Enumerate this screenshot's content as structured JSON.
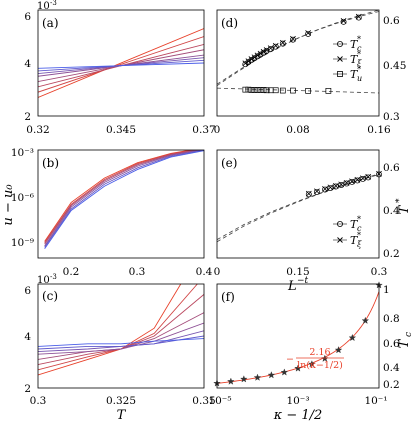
{
  "chart_data": [
    {
      "id": "a",
      "type": "line",
      "panel_label": "(a)",
      "xlim": [
        0.32,
        0.37
      ],
      "ylim": [
        0.002,
        0.006
      ],
      "xticks": [
        "0.32",
        "0.345",
        "0.37"
      ],
      "yticks": [
        "2",
        "4",
        "6"
      ],
      "y_exponent": "10",
      "y_exponent_power": "-3",
      "crossing": [
        0.358,
        0.0041
      ],
      "line_color_start": "#e8412a",
      "line_color_end": "#4a5ee8",
      "series": [
        {
          "values": [
            [
              0.32,
              0.0027
            ],
            [
              0.37,
              0.0053
            ]
          ]
        },
        {
          "values": [
            [
              0.32,
              0.0029
            ],
            [
              0.37,
              0.005
            ]
          ]
        },
        {
          "values": [
            [
              0.32,
              0.0031
            ],
            [
              0.37,
              0.0047
            ]
          ]
        },
        {
          "values": [
            [
              0.32,
              0.0033
            ],
            [
              0.37,
              0.0045
            ]
          ]
        },
        {
          "values": [
            [
              0.32,
              0.0035
            ],
            [
              0.37,
              0.0043
            ]
          ]
        },
        {
          "values": [
            [
              0.32,
              0.0036
            ],
            [
              0.37,
              0.0042
            ]
          ]
        },
        {
          "values": [
            [
              0.32,
              0.0037
            ],
            [
              0.37,
              0.0041
            ]
          ]
        },
        {
          "values": [
            [
              0.32,
              0.0038
            ],
            [
              0.37,
              0.004
            ]
          ]
        }
      ]
    },
    {
      "id": "b",
      "type": "line",
      "panel_label": "(b)",
      "ylabel": "u − u₀",
      "yscale": "log",
      "xlim": [
        0.15,
        0.4
      ],
      "ylim": [
        1e-10,
        0.001
      ],
      "xticks": [
        "0.2",
        "0.3",
        "0.4"
      ],
      "yticks": [
        "10⁻⁹",
        "10⁻⁶",
        "10⁻³"
      ],
      "line_color_start": "#e8412a",
      "line_color_end": "#4a5ee8",
      "series": [
        {
          "values": [
            [
              0.16,
              1.2e-09
            ],
            [
              0.2,
              4e-07
            ],
            [
              0.25,
              1.5e-05
            ],
            [
              0.3,
              0.00015
            ],
            [
              0.35,
              0.0006
            ],
            [
              0.38,
              0.001
            ]
          ]
        },
        {
          "values": [
            [
              0.16,
              1e-09
            ],
            [
              0.2,
              3e-07
            ],
            [
              0.25,
              1.2e-05
            ],
            [
              0.3,
              0.00013
            ],
            [
              0.35,
              0.00055
            ],
            [
              0.385,
              0.001
            ]
          ]
        },
        {
          "values": [
            [
              0.16,
              8e-10
            ],
            [
              0.2,
              2.5e-07
            ],
            [
              0.25,
              1e-05
            ],
            [
              0.3,
              0.00011
            ],
            [
              0.35,
              0.0005
            ],
            [
              0.39,
              0.001
            ]
          ]
        },
        {
          "values": [
            [
              0.16,
              6e-10
            ],
            [
              0.2,
              2e-07
            ],
            [
              0.25,
              8e-06
            ],
            [
              0.3,
              9e-05
            ],
            [
              0.35,
              0.00045
            ],
            [
              0.395,
              0.001
            ]
          ]
        },
        {
          "values": [
            [
              0.16,
              5e-10
            ],
            [
              0.2,
              1.5e-07
            ],
            [
              0.25,
              6e-06
            ],
            [
              0.3,
              7e-05
            ],
            [
              0.35,
              0.0004
            ],
            [
              0.4,
              0.001
            ]
          ]
        },
        {
          "values": [
            [
              0.16,
              4e-10
            ],
            [
              0.2,
              1.2e-07
            ],
            [
              0.25,
              4.5e-06
            ],
            [
              0.3,
              5.5e-05
            ],
            [
              0.35,
              0.00035
            ],
            [
              0.4,
              0.0009
            ]
          ]
        }
      ]
    },
    {
      "id": "c",
      "type": "line",
      "panel_label": "(c)",
      "xlabel": "T",
      "xlim": [
        0.3,
        0.35
      ],
      "ylim": [
        0.002,
        0.006
      ],
      "xticks": [
        "0.3",
        "0.325",
        "0.35"
      ],
      "yticks": [
        "2",
        "4",
        "6"
      ],
      "y_exponent": "10",
      "y_exponent_power": "-3",
      "line_color_start": "#e8412a",
      "line_color_end": "#4a5ee8",
      "series": [
        {
          "values": [
            [
              0.3,
              0.0025
            ],
            [
              0.315,
              0.0031
            ],
            [
              0.325,
              0.0035
            ],
            [
              0.335,
              0.0043
            ],
            [
              0.343,
              0.006
            ]
          ]
        },
        {
          "values": [
            [
              0.3,
              0.0027
            ],
            [
              0.315,
              0.0032
            ],
            [
              0.325,
              0.0035
            ],
            [
              0.335,
              0.0041
            ],
            [
              0.348,
              0.006
            ]
          ]
        },
        {
          "values": [
            [
              0.3,
              0.0029
            ],
            [
              0.315,
              0.0033
            ],
            [
              0.325,
              0.0035
            ],
            [
              0.335,
              0.004
            ],
            [
              0.35,
              0.0056
            ]
          ]
        },
        {
          "values": [
            [
              0.3,
              0.0031
            ],
            [
              0.315,
              0.0034
            ],
            [
              0.325,
              0.0035
            ],
            [
              0.335,
              0.0039
            ],
            [
              0.35,
              0.0049
            ]
          ]
        },
        {
          "values": [
            [
              0.3,
              0.0033
            ],
            [
              0.315,
              0.0034
            ],
            [
              0.325,
              0.0035
            ],
            [
              0.335,
              0.0038
            ],
            [
              0.35,
              0.0045
            ]
          ]
        },
        {
          "values": [
            [
              0.3,
              0.0034
            ],
            [
              0.315,
              0.0035
            ],
            [
              0.325,
              0.0036
            ],
            [
              0.335,
              0.0037
            ],
            [
              0.35,
              0.0042
            ]
          ]
        },
        {
          "values": [
            [
              0.3,
              0.0035
            ],
            [
              0.315,
              0.0036
            ],
            [
              0.325,
              0.0036
            ],
            [
              0.335,
              0.0037
            ],
            [
              0.35,
              0.004
            ]
          ]
        },
        {
          "values": [
            [
              0.3,
              0.0036
            ],
            [
              0.315,
              0.0037
            ],
            [
              0.325,
              0.0037
            ],
            [
              0.335,
              0.0038
            ],
            [
              0.35,
              0.0039
            ]
          ]
        }
      ]
    },
    {
      "id": "d",
      "type": "scatter",
      "panel_label": "(d)",
      "xlim": [
        0,
        0.16
      ],
      "ylim": [
        0.3,
        0.65
      ],
      "xticks": [
        "0",
        "0.08",
        "0.16"
      ],
      "yticks": [
        "0.3",
        "0.45",
        "0.6"
      ],
      "legend": [
        "T_c^*",
        "T_ξ^*",
        "T_u^*"
      ],
      "series": [
        {
          "name": "T_c^*",
          "marker": "circle",
          "values": [
            [
              0.028,
              0.471
            ],
            [
              0.031,
              0.478
            ],
            [
              0.034,
              0.485
            ],
            [
              0.037,
              0.491
            ],
            [
              0.04,
              0.497
            ],
            [
              0.043,
              0.503
            ],
            [
              0.046,
              0.509
            ],
            [
              0.049,
              0.515
            ],
            [
              0.053,
              0.521
            ],
            [
              0.058,
              0.529
            ],
            [
              0.065,
              0.539
            ],
            [
              0.075,
              0.552
            ],
            [
              0.09,
              0.571
            ],
            [
              0.125,
              0.611
            ],
            [
              0.14,
              0.625
            ]
          ]
        },
        {
          "name": "T_ξ^*",
          "marker": "x",
          "values": [
            [
              0.028,
              0.474
            ],
            [
              0.031,
              0.481
            ],
            [
              0.034,
              0.488
            ],
            [
              0.037,
              0.494
            ],
            [
              0.04,
              0.5
            ],
            [
              0.043,
              0.506
            ],
            [
              0.046,
              0.512
            ],
            [
              0.049,
              0.518
            ],
            [
              0.053,
              0.524
            ],
            [
              0.058,
              0.532
            ],
            [
              0.065,
              0.542
            ],
            [
              0.075,
              0.555
            ],
            [
              0.09,
              0.574
            ],
            [
              0.125,
              0.614
            ],
            [
              0.14,
              0.628
            ]
          ]
        },
        {
          "name": "T_u^*",
          "marker": "square",
          "values": [
            [
              0.028,
              0.387
            ],
            [
              0.031,
              0.387
            ],
            [
              0.034,
              0.386
            ],
            [
              0.037,
              0.386
            ],
            [
              0.04,
              0.386
            ],
            [
              0.043,
              0.386
            ],
            [
              0.046,
              0.386
            ],
            [
              0.049,
              0.385
            ],
            [
              0.053,
              0.385
            ],
            [
              0.058,
              0.385
            ],
            [
              0.065,
              0.384
            ],
            [
              0.075,
              0.384
            ],
            [
              0.09,
              0.383
            ],
            [
              0.11,
              0.383
            ]
          ]
        }
      ],
      "fit_curves": [
        {
          "values": [
            [
              0,
              0.405
            ],
            [
              0.02,
              0.448
            ],
            [
              0.04,
              0.49
            ],
            [
              0.06,
              0.526
            ],
            [
              0.08,
              0.557
            ],
            [
              0.1,
              0.585
            ],
            [
              0.12,
              0.608
            ],
            [
              0.14,
              0.628
            ],
            [
              0.16,
              0.645
            ]
          ]
        },
        {
          "values": [
            [
              0,
              0.4
            ],
            [
              0.02,
              0.445
            ],
            [
              0.04,
              0.488
            ],
            [
              0.06,
              0.525
            ],
            [
              0.08,
              0.557
            ],
            [
              0.1,
              0.586
            ],
            [
              0.12,
              0.61
            ],
            [
              0.14,
              0.631
            ],
            [
              0.16,
              0.65
            ]
          ]
        },
        {
          "values": [
            [
              0,
              0.392
            ],
            [
              0.04,
              0.388
            ],
            [
              0.08,
              0.384
            ],
            [
              0.12,
              0.38
            ],
            [
              0.16,
              0.376
            ]
          ]
        }
      ]
    },
    {
      "id": "e",
      "type": "scatter",
      "panel_label": "(e)",
      "xlabel": "L^{-t}",
      "ylabel": "T^*",
      "xlim": [
        0,
        0.3
      ],
      "ylim": [
        0.15,
        0.65
      ],
      "xticks": [
        "0",
        "0.15",
        "0.3"
      ],
      "yticks": [
        "0.2",
        "0.4",
        "0.6"
      ],
      "legend": [
        "T_c^*",
        "T_ξ^*"
      ],
      "series": [
        {
          "name": "T_c^*",
          "marker": "circle",
          "values": [
            [
              0.17,
              0.445
            ],
            [
              0.185,
              0.456
            ],
            [
              0.2,
              0.467
            ],
            [
              0.21,
              0.474
            ],
            [
              0.22,
              0.481
            ],
            [
              0.23,
              0.488
            ],
            [
              0.24,
              0.495
            ],
            [
              0.25,
              0.502
            ],
            [
              0.26,
              0.509
            ],
            [
              0.27,
              0.516
            ],
            [
              0.28,
              0.523
            ],
            [
              0.3,
              0.537
            ]
          ]
        },
        {
          "name": "T_ξ^*",
          "marker": "x",
          "values": [
            [
              0.17,
              0.448
            ],
            [
              0.185,
              0.459
            ],
            [
              0.2,
              0.47
            ],
            [
              0.21,
              0.477
            ],
            [
              0.22,
              0.484
            ],
            [
              0.23,
              0.491
            ],
            [
              0.24,
              0.498
            ],
            [
              0.25,
              0.505
            ],
            [
              0.26,
              0.512
            ],
            [
              0.27,
              0.519
            ],
            [
              0.28,
              0.526
            ],
            [
              0.3,
              0.54
            ]
          ]
        }
      ],
      "fit_curves": [
        {
          "values": [
            [
              0,
              0.235
            ],
            [
              0.05,
              0.305
            ],
            [
              0.1,
              0.363
            ],
            [
              0.15,
              0.413
            ],
            [
              0.2,
              0.458
            ],
            [
              0.25,
              0.499
            ],
            [
              0.3,
              0.537
            ]
          ]
        },
        {
          "values": [
            [
              0,
              0.225
            ],
            [
              0.05,
              0.298
            ],
            [
              0.1,
              0.358
            ],
            [
              0.15,
              0.41
            ],
            [
              0.2,
              0.457
            ],
            [
              0.25,
              0.5
            ],
            [
              0.3,
              0.54
            ]
          ]
        }
      ]
    },
    {
      "id": "f",
      "type": "scatter",
      "panel_label": "(f)",
      "xlabel": "κ − 1/2",
      "ylabel": "T_c",
      "xscale": "log",
      "xlim": [
        1e-05,
        0.1
      ],
      "ylim": [
        0.15,
        1.0
      ],
      "xticks": [
        "10⁻⁵",
        "10⁻³",
        "10⁻¹"
      ],
      "yticks": [
        "0.2",
        "0.4",
        "0.6",
        "0.8",
        "1"
      ],
      "annotation": "2.16 / ln(κ−1/2)",
      "annotation_prefix": "−",
      "annotation_numerator": "2.16",
      "annotation_denominator": "ln(κ−1/2)",
      "fit_color": "#e8412a",
      "series": [
        {
          "name": "data",
          "marker": "star",
          "values": [
            [
              1e-05,
              0.188
            ],
            [
              2.2e-05,
              0.203
            ],
            [
              4.6e-05,
              0.222
            ],
            [
              0.0001,
              0.235
            ],
            [
              0.00022,
              0.255
            ],
            [
              0.00046,
              0.278
            ],
            [
              0.001,
              0.31
            ],
            [
              0.0022,
              0.345
            ],
            [
              0.0046,
              0.39
            ],
            [
              0.01,
              0.46
            ],
            [
              0.022,
              0.56
            ],
            [
              0.046,
              0.7
            ],
            [
              0.1,
              0.99
            ]
          ]
        }
      ]
    }
  ]
}
